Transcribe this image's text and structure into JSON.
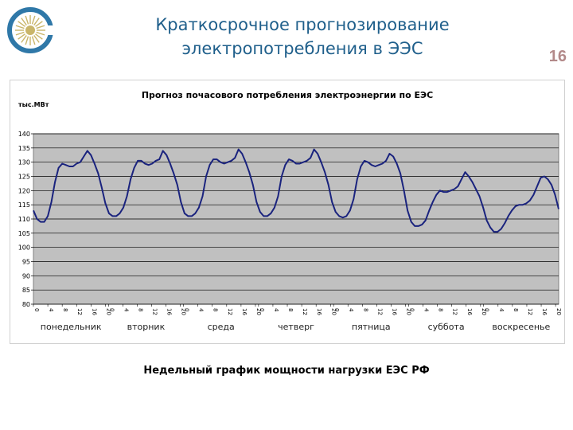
{
  "slide": {
    "title_line1": "Краткосрочное прогнозирование",
    "title_line2": "электропотребления в ЭЭС",
    "page_number": "16",
    "caption": "Недельный график мощности нагрузки ЕЭС РФ",
    "colors": {
      "title": "#1f5f8b",
      "logo": "#2f78a8",
      "page_number": "#b38a8a"
    },
    "logo_icon": "company-logo-icon"
  },
  "chart_data": {
    "type": "line",
    "title": "Прогноз почасового потребления электроэнергии по ЕЭС",
    "y_unit": "тыс.МВт",
    "ylim": [
      80,
      140
    ],
    "yticks": [
      80,
      85,
      90,
      95,
      100,
      105,
      110,
      115,
      120,
      125,
      130,
      135,
      140
    ],
    "grid": true,
    "plot_background": "#c0c0c0",
    "line_color": "#1a237e",
    "hour_tick_labels": [
      "0",
      "4",
      "8",
      "12",
      "16",
      "20"
    ],
    "days": [
      "понедельник",
      "вторник",
      "среда",
      "четверг",
      "пятница",
      "суббота",
      "воскресенье"
    ],
    "series": [
      {
        "values": [
          113,
          110,
          109,
          109,
          111,
          116,
          123,
          128,
          129.5,
          129,
          128.5,
          128.5,
          129.5,
          130,
          132,
          134,
          132.5,
          129.5,
          126,
          121,
          115.5,
          112,
          111,
          111,
          112,
          114,
          118,
          124,
          128,
          130.5,
          130.5,
          129.5,
          129,
          129.5,
          130.5,
          131,
          134,
          132.5,
          129.5,
          126,
          122,
          116,
          112,
          111,
          111,
          112,
          114,
          118,
          125,
          129,
          131,
          131,
          130,
          129.5,
          130,
          130.5,
          131.5,
          134.5,
          133,
          130,
          126.5,
          122,
          116,
          112.5,
          111,
          111,
          112,
          114,
          118,
          125,
          129,
          131,
          130.5,
          129.5,
          129.5,
          130,
          130.5,
          131.5,
          134.5,
          133,
          130,
          126.5,
          122,
          116,
          112.5,
          111,
          110.5,
          111,
          113,
          117,
          124,
          128.5,
          130.5,
          130,
          129,
          128.5,
          129,
          129.5,
          130.5,
          133,
          132,
          129.5,
          126,
          120,
          113,
          109,
          107.5,
          107.5,
          108,
          109.5,
          113,
          116,
          118.5,
          120,
          119.5,
          119.5,
          120,
          120.5,
          121.5,
          124,
          126.5,
          125,
          123,
          120.5,
          118,
          114,
          109.5,
          107,
          105.5,
          105.5,
          106.5,
          108.5,
          111,
          113,
          114.5,
          115,
          115,
          115.5,
          116.5,
          118.5,
          121.5,
          124.5,
          125,
          124,
          122,
          118.5,
          113.5
        ]
      }
    ]
  }
}
